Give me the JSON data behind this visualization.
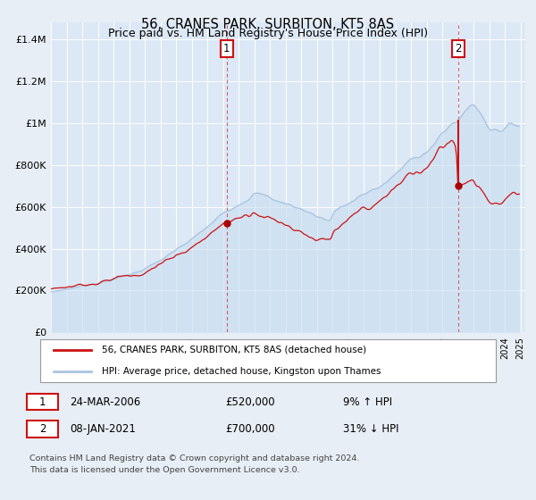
{
  "title": "56, CRANES PARK, SURBITON, KT5 8AS",
  "subtitle": "Price paid vs. HM Land Registry's House Price Index (HPI)",
  "ylabel_ticks": [
    "£0",
    "£200K",
    "£400K",
    "£600K",
    "£800K",
    "£1M",
    "£1.2M",
    "£1.4M"
  ],
  "ytick_values": [
    0,
    200000,
    400000,
    600000,
    800000,
    1000000,
    1200000,
    1400000
  ],
  "ylim": [
    0,
    1480000
  ],
  "xlim_start": 1995.0,
  "xlim_end": 2025.3,
  "hpi_color": "#aac4e0",
  "hpi_fill_color": "#c8ddf0",
  "price_color": "#cc1111",
  "sale1_x": 2006.23,
  "sale1_y": 520000,
  "sale2_x": 2021.03,
  "sale2_y": 700000,
  "marker_color": "#aa0000",
  "legend_line1": "56, CRANES PARK, SURBITON, KT5 8AS (detached house)",
  "legend_line2": "HPI: Average price, detached house, Kingston upon Thames",
  "table_row1": [
    "1",
    "24-MAR-2006",
    "£520,000",
    "9% ↑ HPI"
  ],
  "table_row2": [
    "2",
    "08-JAN-2021",
    "£700,000",
    "31% ↓ HPI"
  ],
  "footnote": "Contains HM Land Registry data © Crown copyright and database right 2024.\nThis data is licensed under the Open Government Licence v3.0.",
  "bg_color": "#e8eef5",
  "plot_bg": "#dce8f5",
  "grid_color": "#ffffff",
  "vline_color": "#cc1111",
  "title_fontsize": 10.5,
  "subtitle_fontsize": 9.5
}
